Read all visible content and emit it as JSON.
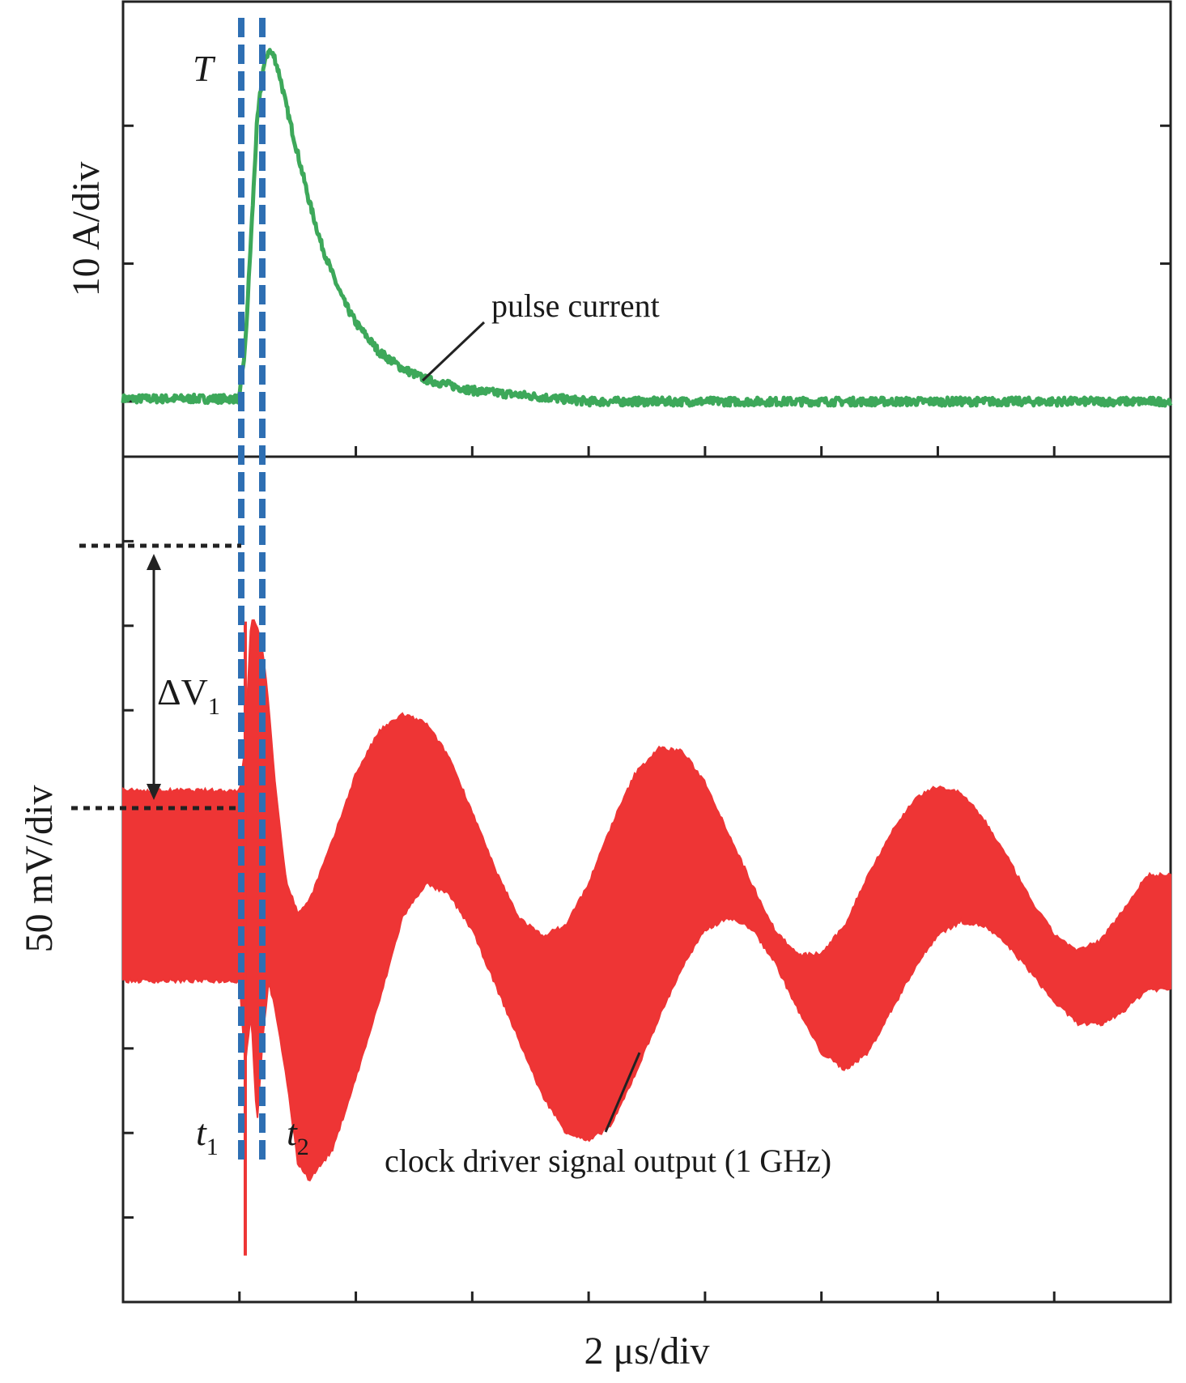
{
  "chart_data": [
    {
      "type": "line",
      "panel": "top",
      "ylabel": "10 A/div",
      "xlabel": "",
      "x_units": "div",
      "y_units": "div",
      "xlim": [
        0,
        9
      ],
      "ylim": [
        -0.4,
        2.9
      ],
      "grid": false,
      "color": "#3da85a",
      "series": [
        {
          "name": "pulse current",
          "x": [
            0.0,
            0.5,
            1.0,
            1.05,
            1.1,
            1.15,
            1.2,
            1.25,
            1.3,
            1.35,
            1.4,
            1.5,
            1.6,
            1.7,
            1.8,
            1.9,
            2.0,
            2.2,
            2.4,
            2.6,
            2.8,
            3.0,
            3.5,
            4.0,
            4.5,
            5.0,
            6.0,
            7.0,
            8.0,
            9.0
          ],
          "y": [
            0.02,
            0.02,
            0.02,
            0.4,
            1.2,
            2.0,
            2.4,
            2.55,
            2.5,
            2.35,
            2.15,
            1.8,
            1.45,
            1.15,
            0.92,
            0.72,
            0.57,
            0.36,
            0.24,
            0.16,
            0.12,
            0.08,
            0.04,
            0.0,
            0.0,
            0.0,
            0.0,
            0.0,
            0.0,
            0.0
          ]
        }
      ],
      "annotations": [
        "T",
        "pulse current"
      ]
    },
    {
      "type": "area",
      "panel": "bottom",
      "ylabel": "50 mV/div",
      "xlabel": "2 μs/div",
      "x_units": "div",
      "y_units": "div",
      "xlim": [
        0,
        9
      ],
      "ylim": [
        -4.0,
        6.0
      ],
      "grid": false,
      "color": "#ee3535",
      "series": [
        {
          "name": "clock driver signal output (1 GHz)",
          "x": [
            0.0,
            0.5,
            1.0,
            1.05,
            1.1,
            1.15,
            1.2,
            1.25,
            1.3,
            1.4,
            1.5,
            1.6,
            1.8,
            2.0,
            2.2,
            2.4,
            2.6,
            2.8,
            3.0,
            3.2,
            3.4,
            3.6,
            3.8,
            4.0,
            4.2,
            4.4,
            4.6,
            4.8,
            5.0,
            5.2,
            5.4,
            5.6,
            5.8,
            6.0,
            6.2,
            6.4,
            6.6,
            6.8,
            7.0,
            7.2,
            7.4,
            7.6,
            7.8,
            8.0,
            8.2,
            8.4,
            8.6,
            8.8,
            9.0
          ],
          "upper": [
            2.05,
            2.05,
            2.05,
            2.6,
            4.1,
            4.0,
            3.7,
            3.1,
            2.2,
            1.0,
            0.6,
            0.75,
            1.45,
            2.25,
            2.75,
            2.95,
            2.85,
            2.45,
            1.8,
            1.1,
            0.55,
            0.33,
            0.45,
            0.95,
            1.65,
            2.25,
            2.55,
            2.52,
            2.15,
            1.55,
            0.95,
            0.4,
            0.1,
            0.12,
            0.45,
            1.05,
            1.55,
            1.95,
            2.1,
            2.02,
            1.7,
            1.25,
            0.75,
            0.35,
            0.15,
            0.28,
            0.65,
            1.05,
            1.05
          ],
          "lower": [
            -0.2,
            -0.2,
            -0.2,
            -1.2,
            -0.55,
            -1.9,
            -0.9,
            -0.2,
            -0.5,
            -1.3,
            -2.35,
            -2.55,
            -2.2,
            -1.35,
            -0.45,
            0.55,
            0.95,
            0.82,
            0.4,
            -0.25,
            -0.9,
            -1.55,
            -1.98,
            -2.1,
            -1.9,
            -1.3,
            -0.65,
            -0.05,
            0.4,
            0.55,
            0.42,
            0.02,
            -0.55,
            -1.05,
            -1.25,
            -1.05,
            -0.55,
            -0.05,
            0.35,
            0.5,
            0.45,
            0.22,
            -0.1,
            -0.45,
            -0.7,
            -0.72,
            -0.55,
            -0.3,
            -0.3
          ]
        }
      ],
      "annotations": [
        "ΔV",
        "1",
        "t",
        "1",
        "t",
        "2",
        "clock driver signal output (1 GHz)"
      ]
    }
  ]
}
